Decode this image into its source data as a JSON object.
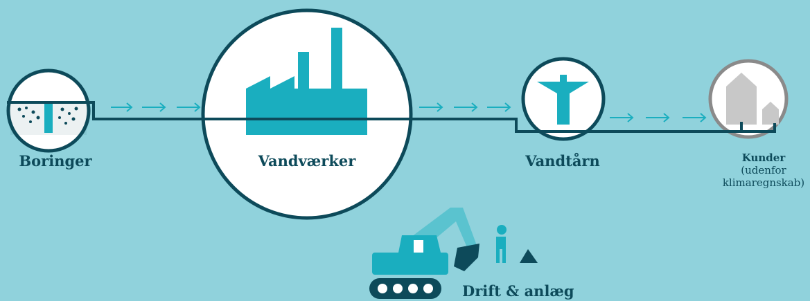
{
  "nodes": [
    {
      "label": "Boringer"
    },
    {
      "label": "Vandværker"
    },
    {
      "label": "Vandtårn"
    },
    {
      "label": "Kunder",
      "note": [
        "(udenfor",
        "klimaregnskab)"
      ]
    }
  ],
  "operations": {
    "label": "Drift & anlæg"
  }
}
